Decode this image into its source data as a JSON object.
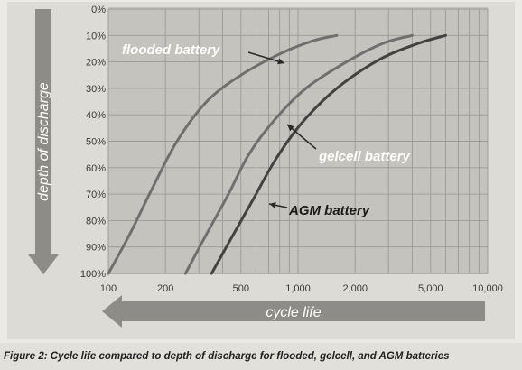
{
  "chart_data": {
    "type": "line",
    "title": "",
    "xlabel": "cycle life",
    "ylabel": "depth of discharge",
    "x_scale": "log",
    "xlim": [
      100,
      10000
    ],
    "ylim": [
      0,
      100
    ],
    "y_inverted": true,
    "x_ticks": [
      {
        "value": 100,
        "label": "100"
      },
      {
        "value": 200,
        "label": "200"
      },
      {
        "value": 500,
        "label": "500"
      },
      {
        "value": 1000,
        "label": "1,000"
      },
      {
        "value": 2000,
        "label": "2,000"
      },
      {
        "value": 5000,
        "label": "5,000"
      },
      {
        "value": 10000,
        "label": "10,000"
      }
    ],
    "y_ticks": [
      {
        "value": 0,
        "label": "0%"
      },
      {
        "value": 10,
        "label": "10%"
      },
      {
        "value": 20,
        "label": "20%"
      },
      {
        "value": 30,
        "label": "30%"
      },
      {
        "value": 40,
        "label": "40%"
      },
      {
        "value": 50,
        "label": "50%"
      },
      {
        "value": 60,
        "label": "60%"
      },
      {
        "value": 70,
        "label": "70%"
      },
      {
        "value": 80,
        "label": "80%"
      },
      {
        "value": 90,
        "label": "90%"
      },
      {
        "value": 100,
        "label": "100%"
      }
    ],
    "grid": true,
    "series": [
      {
        "name": "flooded battery",
        "color": "#6f6f6f",
        "points": [
          [
            100,
            100
          ],
          [
            130,
            85
          ],
          [
            170,
            68
          ],
          [
            230,
            50
          ],
          [
            330,
            35
          ],
          [
            500,
            25
          ],
          [
            800,
            17
          ],
          [
            1200,
            12
          ],
          [
            1600,
            10
          ]
        ]
      },
      {
        "name": "gelcell battery",
        "color": "#6f6f6f",
        "points": [
          [
            255,
            100
          ],
          [
            330,
            85
          ],
          [
            430,
            70
          ],
          [
            550,
            55
          ],
          [
            750,
            42
          ],
          [
            1100,
            30
          ],
          [
            1800,
            20
          ],
          [
            2800,
            13
          ],
          [
            4000,
            10
          ]
        ]
      },
      {
        "name": "AGM battery",
        "color": "#424242",
        "points": [
          [
            350,
            100
          ],
          [
            450,
            86
          ],
          [
            580,
            72
          ],
          [
            760,
            57
          ],
          [
            1050,
            43
          ],
          [
            1600,
            30
          ],
          [
            2700,
            19
          ],
          [
            4300,
            13
          ],
          [
            6000,
            10
          ]
        ]
      }
    ],
    "annotations": [
      {
        "text": "flooded battery",
        "target_series": 0
      },
      {
        "text": "gelcell battery",
        "target_series": 1
      },
      {
        "text": "AGM battery",
        "target_series": 2
      }
    ]
  },
  "caption": "Figure 2: Cycle life compared to depth of discharge for flooded, gelcell, and AGM batteries"
}
